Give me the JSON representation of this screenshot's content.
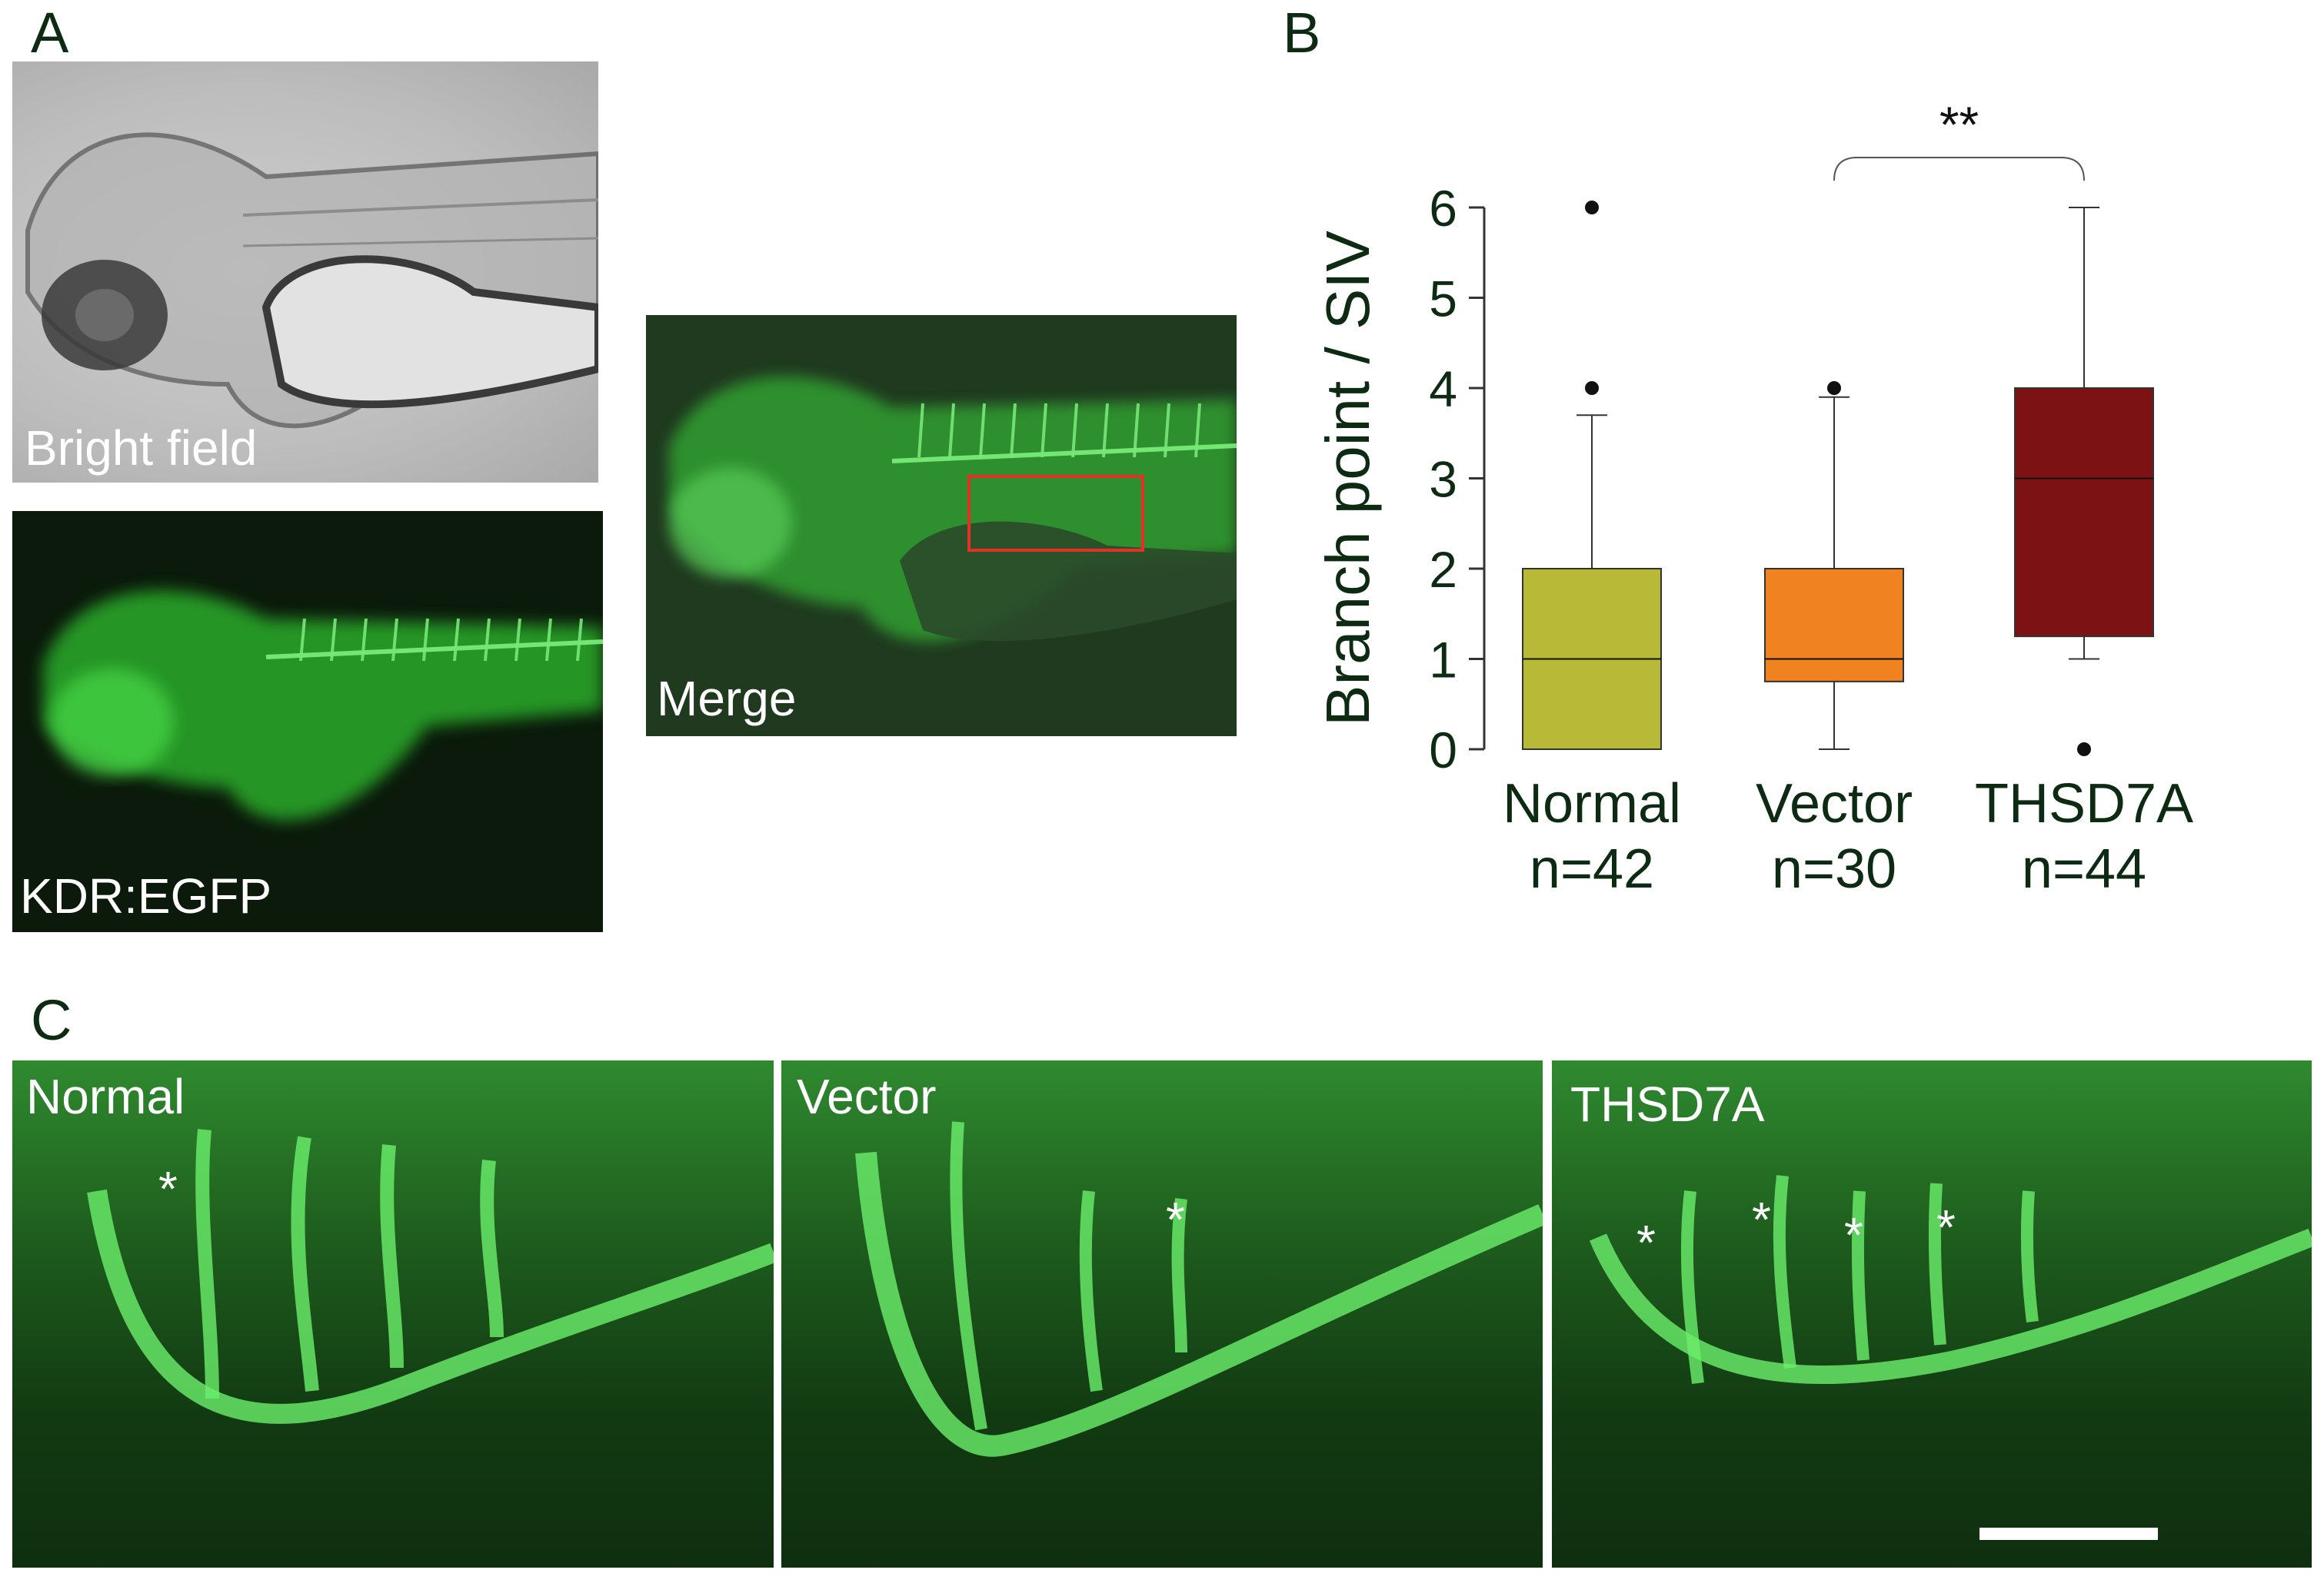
{
  "panels": {
    "a": {
      "letter": "A",
      "bright_caption": "Bright field",
      "kdr_caption": "KDR:EGFP",
      "merge_caption": "Merge"
    },
    "b": {
      "letter": "B"
    },
    "c": {
      "letter": "C",
      "normal_caption": "Normal",
      "vector_caption": "Vector",
      "thsd7a_caption": "THSD7A",
      "asterisk": "*"
    }
  },
  "chart_data": {
    "type": "boxplot",
    "ylabel": "Branch point / SIV",
    "ylim": [
      0,
      6
    ],
    "yticks": [
      0,
      1,
      2,
      3,
      4,
      5,
      6
    ],
    "significance": {
      "label": "**",
      "from": "Vector",
      "to": "THSD7A"
    },
    "groups": [
      {
        "name": "Normal",
        "n_label": "n=42",
        "color": "#b8b937",
        "min": 0,
        "q1": 0,
        "median": 1,
        "q3": 2,
        "max": 3.7,
        "outliers": [
          4,
          6
        ]
      },
      {
        "name": "Vector",
        "n_label": "n=30",
        "color": "#f08320",
        "min": 0,
        "q1": 0.75,
        "median": 1,
        "q3": 2,
        "max": 3.9,
        "outliers": [
          4
        ]
      },
      {
        "name": "THSD7A",
        "n_label": "n=44",
        "color": "#7d1214",
        "min": 1,
        "q1": 1.25,
        "median": 3,
        "q3": 4,
        "max": 6,
        "outliers": [
          0
        ]
      }
    ]
  }
}
